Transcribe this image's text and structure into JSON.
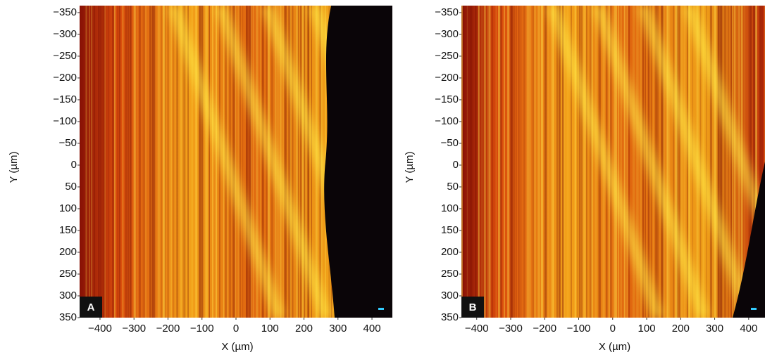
{
  "chart_data": [
    {
      "type": "image",
      "panel_label": "A",
      "x_label": "X (µm)",
      "y_label": "Y (µm)",
      "xlim": [
        -460,
        460
      ],
      "ylim": [
        350,
        -366
      ],
      "xticks": [
        {
          "value": -400,
          "label": "−400"
        },
        {
          "value": -300,
          "label": "−300"
        },
        {
          "value": -200,
          "label": "−200"
        },
        {
          "value": -100,
          "label": "−100"
        },
        0,
        100,
        200,
        300,
        400
      ],
      "yticks": [
        {
          "value": -350,
          "label": "−350"
        },
        {
          "value": -300,
          "label": "−300"
        },
        {
          "value": -250,
          "label": "−250"
        },
        {
          "value": -200,
          "label": "−200"
        },
        {
          "value": -150,
          "label": "−150"
        },
        {
          "value": -100,
          "label": "−100"
        },
        {
          "value": -50,
          "label": "−50"
        },
        0,
        50,
        100,
        150,
        200,
        250,
        300,
        350
      ]
    },
    {
      "type": "image",
      "panel_label": "B",
      "x_label": "X (µm)",
      "y_label": "Y (µm)",
      "xlim": [
        -445,
        448
      ],
      "ylim": [
        350,
        -366
      ],
      "xticks": [
        {
          "value": -400,
          "label": "−400"
        },
        {
          "value": -300,
          "label": "−300"
        },
        {
          "value": -200,
          "label": "−200"
        },
        {
          "value": -100,
          "label": "−100"
        },
        0,
        100,
        200,
        300,
        400
      ],
      "yticks": [
        {
          "value": -350,
          "label": "−350"
        },
        {
          "value": -300,
          "label": "−300"
        },
        {
          "value": -250,
          "label": "−250"
        },
        {
          "value": -200,
          "label": "−200"
        },
        {
          "value": -150,
          "label": "−150"
        },
        {
          "value": -100,
          "label": "−100"
        },
        {
          "value": -50,
          "label": "−50"
        },
        0,
        50,
        100,
        150,
        200,
        250,
        300,
        350
      ]
    }
  ]
}
